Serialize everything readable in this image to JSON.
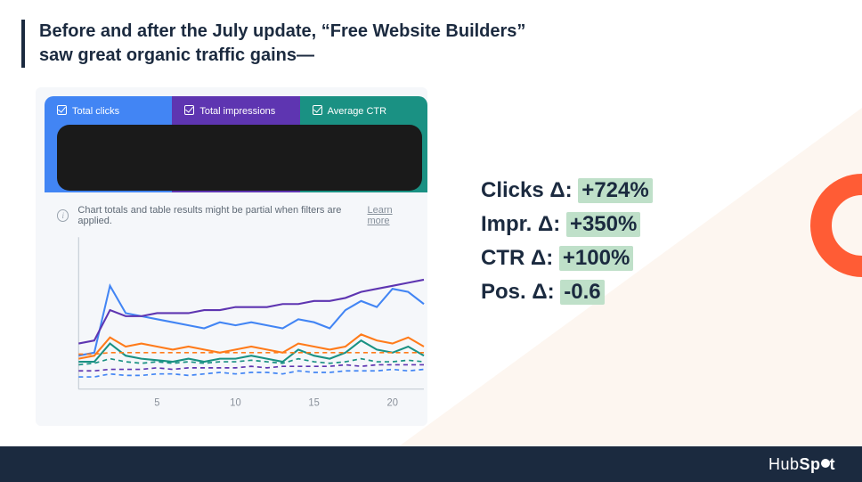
{
  "title_line1": "Before and after the July update, “Free Website Builders”",
  "title_line2": "saw great organic traffic gains—",
  "gsc": {
    "tabs": [
      {
        "label": "Total clicks",
        "bg": "#4285f4"
      },
      {
        "label": "Total impressions",
        "bg": "#5e35b1"
      },
      {
        "label": "Average CTR",
        "bg": "#1a9183"
      }
    ],
    "info_text": "Chart totals and table results might be partial when filters are applied.",
    "learn_more": "Learn more",
    "chart": {
      "x_ticks": [
        5,
        10,
        15,
        20
      ],
      "x_range": [
        0,
        22
      ],
      "y_range": [
        0,
        100
      ],
      "series": [
        {
          "color": "#4285f4",
          "dashed": false,
          "points": [
            [
              0,
              22
            ],
            [
              1,
              24
            ],
            [
              2,
              68
            ],
            [
              3,
              50
            ],
            [
              4,
              48
            ],
            [
              5,
              46
            ],
            [
              6,
              44
            ],
            [
              7,
              42
            ],
            [
              8,
              40
            ],
            [
              9,
              44
            ],
            [
              10,
              42
            ],
            [
              11,
              44
            ],
            [
              12,
              42
            ],
            [
              13,
              40
            ],
            [
              14,
              46
            ],
            [
              15,
              44
            ],
            [
              16,
              40
            ],
            [
              17,
              52
            ],
            [
              18,
              58
            ],
            [
              19,
              54
            ],
            [
              20,
              66
            ],
            [
              21,
              64
            ],
            [
              22,
              56
            ]
          ]
        },
        {
          "color": "#5e35b1",
          "dashed": false,
          "points": [
            [
              0,
              30
            ],
            [
              1,
              32
            ],
            [
              2,
              52
            ],
            [
              3,
              48
            ],
            [
              4,
              48
            ],
            [
              5,
              50
            ],
            [
              6,
              50
            ],
            [
              7,
              50
            ],
            [
              8,
              52
            ],
            [
              9,
              52
            ],
            [
              10,
              54
            ],
            [
              11,
              54
            ],
            [
              12,
              54
            ],
            [
              13,
              56
            ],
            [
              14,
              56
            ],
            [
              15,
              58
            ],
            [
              16,
              58
            ],
            [
              17,
              60
            ],
            [
              18,
              64
            ],
            [
              19,
              66
            ],
            [
              20,
              68
            ],
            [
              21,
              70
            ],
            [
              22,
              72
            ]
          ]
        },
        {
          "color": "#1a9183",
          "dashed": false,
          "points": [
            [
              0,
              18
            ],
            [
              1,
              18
            ],
            [
              2,
              30
            ],
            [
              3,
              22
            ],
            [
              4,
              20
            ],
            [
              5,
              19
            ],
            [
              6,
              18
            ],
            [
              7,
              20
            ],
            [
              8,
              18
            ],
            [
              9,
              20
            ],
            [
              10,
              20
            ],
            [
              11,
              22
            ],
            [
              12,
              20
            ],
            [
              13,
              18
            ],
            [
              14,
              26
            ],
            [
              15,
              22
            ],
            [
              16,
              20
            ],
            [
              17,
              24
            ],
            [
              18,
              32
            ],
            [
              19,
              26
            ],
            [
              20,
              24
            ],
            [
              21,
              28
            ],
            [
              22,
              22
            ]
          ]
        },
        {
          "color": "#ff7b1a",
          "dashed": false,
          "points": [
            [
              0,
              20
            ],
            [
              1,
              22
            ],
            [
              2,
              34
            ],
            [
              3,
              28
            ],
            [
              4,
              30
            ],
            [
              5,
              28
            ],
            [
              6,
              26
            ],
            [
              7,
              28
            ],
            [
              8,
              26
            ],
            [
              9,
              24
            ],
            [
              10,
              26
            ],
            [
              11,
              28
            ],
            [
              12,
              26
            ],
            [
              13,
              24
            ],
            [
              14,
              30
            ],
            [
              15,
              28
            ],
            [
              16,
              26
            ],
            [
              17,
              28
            ],
            [
              18,
              36
            ],
            [
              19,
              32
            ],
            [
              20,
              30
            ],
            [
              21,
              34
            ],
            [
              22,
              28
            ]
          ]
        },
        {
          "color": "#4285f4",
          "dashed": true,
          "points": [
            [
              0,
              8
            ],
            [
              1,
              8
            ],
            [
              2,
              10
            ],
            [
              3,
              9
            ],
            [
              4,
              9
            ],
            [
              5,
              10
            ],
            [
              6,
              10
            ],
            [
              7,
              9
            ],
            [
              8,
              10
            ],
            [
              9,
              11
            ],
            [
              10,
              10
            ],
            [
              11,
              11
            ],
            [
              12,
              11
            ],
            [
              13,
              10
            ],
            [
              14,
              12
            ],
            [
              15,
              11
            ],
            [
              16,
              11
            ],
            [
              17,
              12
            ],
            [
              18,
              12
            ],
            [
              19,
              12
            ],
            [
              20,
              13
            ],
            [
              21,
              12
            ],
            [
              22,
              13
            ]
          ]
        },
        {
          "color": "#5e35b1",
          "dashed": true,
          "points": [
            [
              0,
              12
            ],
            [
              1,
              12
            ],
            [
              2,
              13
            ],
            [
              3,
              13
            ],
            [
              4,
              13
            ],
            [
              5,
              14
            ],
            [
              6,
              13
            ],
            [
              7,
              14
            ],
            [
              8,
              14
            ],
            [
              9,
              14
            ],
            [
              10,
              14
            ],
            [
              11,
              15
            ],
            [
              12,
              14
            ],
            [
              13,
              15
            ],
            [
              14,
              15
            ],
            [
              15,
              15
            ],
            [
              16,
              15
            ],
            [
              17,
              16
            ],
            [
              18,
              15
            ],
            [
              19,
              16
            ],
            [
              20,
              16
            ],
            [
              21,
              16
            ],
            [
              22,
              16
            ]
          ]
        },
        {
          "color": "#1a9183",
          "dashed": true,
          "points": [
            [
              0,
              16
            ],
            [
              1,
              17
            ],
            [
              2,
              20
            ],
            [
              3,
              18
            ],
            [
              4,
              17
            ],
            [
              5,
              18
            ],
            [
              6,
              17
            ],
            [
              7,
              18
            ],
            [
              8,
              17
            ],
            [
              9,
              18
            ],
            [
              10,
              18
            ],
            [
              11,
              19
            ],
            [
              12,
              18
            ],
            [
              13,
              17
            ],
            [
              14,
              20
            ],
            [
              15,
              18
            ],
            [
              16,
              17
            ],
            [
              17,
              18
            ],
            [
              18,
              20
            ],
            [
              19,
              18
            ],
            [
              20,
              18
            ],
            [
              21,
              19
            ],
            [
              22,
              18
            ]
          ]
        },
        {
          "color": "#ff7b1a",
          "dashed": true,
          "points": [
            [
              0,
              23
            ],
            [
              1,
              23
            ],
            [
              2,
              24
            ],
            [
              3,
              24
            ],
            [
              4,
              24
            ],
            [
              5,
              24
            ],
            [
              6,
              24
            ],
            [
              7,
              24
            ],
            [
              8,
              24
            ],
            [
              9,
              24
            ],
            [
              10,
              24
            ],
            [
              11,
              24
            ],
            [
              12,
              24
            ],
            [
              13,
              24
            ],
            [
              14,
              24
            ],
            [
              15,
              24
            ],
            [
              16,
              24
            ],
            [
              17,
              24
            ],
            [
              18,
              24
            ],
            [
              19,
              24
            ],
            [
              20,
              24
            ],
            [
              21,
              24
            ],
            [
              22,
              24
            ]
          ]
        }
      ]
    }
  },
  "stats": {
    "highlight_bg": "#bfe0c9",
    "rows": [
      {
        "label": "Clicks Δ: ",
        "value": "+724%"
      },
      {
        "label": "Impr. Δ: ",
        "value": "+350%"
      },
      {
        "label": "CTR Δ: ",
        "value": "+100%"
      },
      {
        "label": "Pos. Δ: ",
        "value": "-0.6"
      }
    ]
  },
  "brand": {
    "part1": "Hub",
    "part2": "Sp",
    "part3": "t"
  },
  "colors": {
    "footer_bg": "#1b2a3f",
    "ring": "#ff5c35",
    "diag": "#fdf6f0",
    "redaction": "#1a1a1a"
  }
}
